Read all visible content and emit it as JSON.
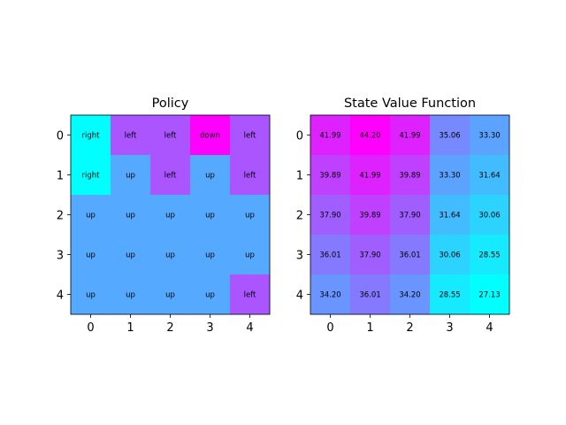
{
  "chart_data": [
    {
      "type": "heatmap",
      "title": "Policy",
      "xticks": [
        "0",
        "1",
        "2",
        "3",
        "4"
      ],
      "yticks": [
        "0",
        "1",
        "2",
        "3",
        "4"
      ],
      "colormap": "cool",
      "cells": [
        [
          "right",
          "left",
          "left",
          "down",
          "left"
        ],
        [
          "right",
          "up",
          "left",
          "up",
          "left"
        ],
        [
          "up",
          "up",
          "up",
          "up",
          "up"
        ],
        [
          "up",
          "up",
          "up",
          "up",
          "up"
        ],
        [
          "up",
          "up",
          "up",
          "up",
          "left"
        ]
      ],
      "cell_colors": {
        "right": "#00ffff",
        "up": "#55aaff",
        "left": "#aa55ff",
        "down": "#ff00ff"
      }
    },
    {
      "type": "heatmap",
      "title": "State Value Function",
      "xticks": [
        "0",
        "1",
        "2",
        "3",
        "4"
      ],
      "yticks": [
        "0",
        "1",
        "2",
        "3",
        "4"
      ],
      "colormap": "cool",
      "values": [
        [
          41.99,
          44.2,
          41.99,
          35.06,
          33.3
        ],
        [
          39.89,
          41.99,
          39.89,
          33.3,
          31.64
        ],
        [
          37.9,
          39.89,
          37.9,
          31.64,
          30.06
        ],
        [
          36.01,
          37.9,
          36.01,
          30.06,
          28.55
        ],
        [
          34.2,
          36.01,
          34.2,
          28.55,
          27.13
        ]
      ],
      "value_labels": [
        [
          "41.99",
          "44.20",
          "41.99",
          "35.06",
          "33.30"
        ],
        [
          "39.89",
          "41.99",
          "39.89",
          "33.30",
          "31.64"
        ],
        [
          "37.90",
          "39.89",
          "37.90",
          "31.64",
          "30.06"
        ],
        [
          "36.01",
          "37.90",
          "36.01",
          "30.06",
          "28.55"
        ],
        [
          "34.20",
          "36.01",
          "34.20",
          "28.55",
          "27.13"
        ]
      ],
      "vmin": 27.13,
      "vmax": 44.2
    }
  ]
}
